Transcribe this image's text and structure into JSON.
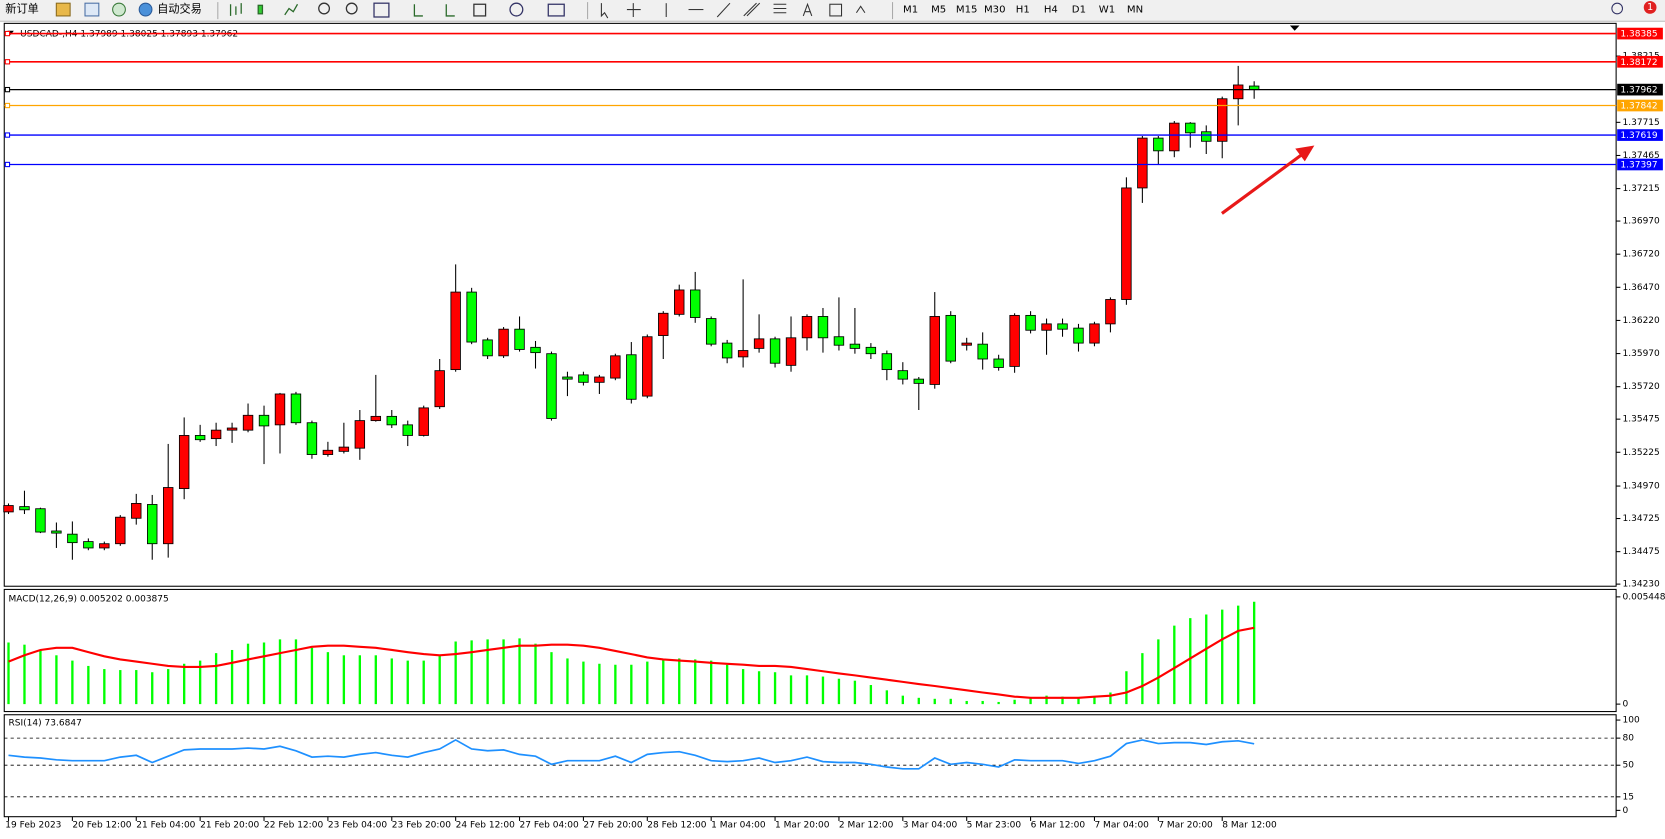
{
  "toolbar": {
    "new_order": "新订单",
    "auto_trading": "自动交易",
    "timeframes": [
      "M1",
      "M5",
      "M15",
      "M30",
      "H1",
      "H4",
      "D1",
      "W1",
      "MN"
    ],
    "notifications": 1
  },
  "chart_data": [
    {
      "type": "candlestick",
      "title": "USDCAD-,H4  1.37989 1.38025 1.37893 1.37962",
      "categories": [
        "19 Feb 2023",
        null,
        null,
        null,
        "20 Feb 12:00",
        null,
        null,
        null,
        "21 Feb 04:00",
        null,
        null,
        null,
        "21 Feb 20:00",
        null,
        null,
        null,
        "22 Feb 12:00",
        null,
        null,
        null,
        "23 Feb 04:00",
        null,
        null,
        null,
        "23 Feb 20:00",
        null,
        null,
        null,
        "24 Feb 12:00",
        null,
        null,
        null,
        "27 Feb 04:00",
        null,
        null,
        null,
        "27 Feb 20:00",
        null,
        null,
        null,
        "28 Feb 12:00",
        null,
        null,
        null,
        "1 Mar 04:00",
        null,
        null,
        null,
        "1 Mar 20:00",
        null,
        null,
        null,
        "2 Mar 12:00",
        null,
        null,
        null,
        "3 Mar 04:00",
        null,
        null,
        null,
        "5 Mar 23:00",
        null,
        null,
        null,
        "6 Mar 12:00",
        null,
        null,
        null,
        "7 Mar 04:00",
        null,
        null,
        null,
        "7 Mar 20:00",
        null,
        null,
        null,
        "8 Mar 12:00",
        null,
        null
      ],
      "open": [
        1.34775,
        1.34815,
        1.34799,
        1.34631,
        1.34607,
        1.34551,
        1.34503,
        1.34535,
        1.34727,
        1.34831,
        1.34535,
        1.34951,
        1.35352,
        1.35328,
        1.35392,
        1.35392,
        1.35504,
        1.35432,
        1.35665,
        1.35448,
        1.35208,
        1.35232,
        1.35256,
        1.35464,
        1.35496,
        1.35432,
        1.35352,
        1.35569,
        1.35849,
        1.36434,
        1.36073,
        1.35953,
        1.36154,
        1.36017,
        1.35969,
        1.35793,
        1.35809,
        1.35753,
        1.35785,
        1.35961,
        1.35649,
        1.36106,
        1.36266,
        1.3645,
        1.36234,
        1.36049,
        1.35945,
        1.36009,
        1.36081,
        1.35881,
        1.36089,
        1.3625,
        1.36097,
        1.36041,
        1.36017,
        1.35969,
        1.35841,
        1.35777,
        1.35737,
        1.36258,
        1.36033,
        1.36041,
        1.35929,
        1.35873,
        1.36258,
        1.36146,
        1.36194,
        1.36162,
        1.36049,
        1.36194,
        1.36378,
        1.3722,
        1.37596,
        1.375,
        1.37709,
        1.37644,
        1.37572,
        1.37893,
        1.37989
      ],
      "high": [
        1.34839,
        1.34935,
        1.34807,
        1.34695,
        1.34703,
        1.34575,
        1.34551,
        1.34751,
        1.34911,
        1.34903,
        1.35288,
        1.35488,
        1.35432,
        1.35448,
        1.35448,
        1.35593,
        1.35577,
        1.35673,
        1.35681,
        1.35464,
        1.35304,
        1.35448,
        1.35544,
        1.35809,
        1.35544,
        1.35464,
        1.35577,
        1.35929,
        1.36643,
        1.36466,
        1.36089,
        1.3617,
        1.3625,
        1.36065,
        1.35985,
        1.35833,
        1.35833,
        1.35809,
        1.35969,
        1.36057,
        1.36114,
        1.3629,
        1.3649,
        1.36586,
        1.3625,
        1.36073,
        1.3653,
        1.36266,
        1.36097,
        1.3625,
        1.36266,
        1.36314,
        1.36394,
        1.36314,
        1.36049,
        1.35993,
        1.35905,
        1.35793,
        1.36434,
        1.3629,
        1.36089,
        1.3613,
        1.35961,
        1.36274,
        1.3629,
        1.36234,
        1.36234,
        1.36194,
        1.3621,
        1.36394,
        1.373,
        1.37612,
        1.37612,
        1.37725,
        1.37717,
        1.37692,
        1.37909,
        1.38141,
        1.38025
      ],
      "low": [
        1.34759,
        1.34759,
        1.34615,
        1.34503,
        1.34414,
        1.34486,
        1.34486,
        1.34519,
        1.34679,
        1.34414,
        1.3443,
        1.34871,
        1.35304,
        1.35272,
        1.35296,
        1.35376,
        1.35136,
        1.35216,
        1.35432,
        1.35176,
        1.35192,
        1.35216,
        1.35168,
        1.35456,
        1.35408,
        1.35272,
        1.35344,
        1.35552,
        1.35833,
        1.36041,
        1.35929,
        1.35937,
        1.35985,
        1.35857,
        1.35464,
        1.35649,
        1.35729,
        1.35665,
        1.35769,
        1.35593,
        1.35633,
        1.35929,
        1.3625,
        1.36202,
        1.36025,
        1.35897,
        1.35865,
        1.35977,
        1.35865,
        1.35833,
        1.35993,
        1.35977,
        1.35993,
        1.35969,
        1.35929,
        1.35769,
        1.35737,
        1.35544,
        1.35705,
        1.35897,
        1.35993,
        1.35849,
        1.35841,
        1.35825,
        1.36122,
        1.35961,
        1.36097,
        1.35985,
        1.36025,
        1.3613,
        1.36338,
        1.37107,
        1.37396,
        1.37452,
        1.37524,
        1.37476,
        1.37444,
        1.37692,
        1.37893
      ],
      "close": [
        1.34823,
        1.34791,
        1.34623,
        1.34615,
        1.34543,
        1.34503,
        1.34535,
        1.34735,
        1.34839,
        1.34535,
        1.34959,
        1.35352,
        1.3532,
        1.35392,
        1.35408,
        1.35504,
        1.35424,
        1.35665,
        1.35448,
        1.35208,
        1.3524,
        1.35264,
        1.35464,
        1.35496,
        1.35432,
        1.35352,
        1.3556,
        1.35841,
        1.36434,
        1.36057,
        1.35953,
        1.36154,
        1.36001,
        1.35977,
        1.3548,
        1.35777,
        1.35753,
        1.35793,
        1.35953,
        1.35625,
        1.36097,
        1.36274,
        1.3645,
        1.36242,
        1.36041,
        1.35937,
        1.35993,
        1.36081,
        1.35897,
        1.36089,
        1.3625,
        1.36089,
        1.36033,
        1.36009,
        1.35969,
        1.35849,
        1.35777,
        1.35745,
        1.3625,
        1.35913,
        1.36049,
        1.35929,
        1.35865,
        1.36258,
        1.36146,
        1.36194,
        1.36154,
        1.36049,
        1.36194,
        1.36378,
        1.3722,
        1.37596,
        1.375,
        1.37709,
        1.37636,
        1.37572,
        1.37893,
        1.37997,
        1.37962
      ],
      "up_color": "#ff0000",
      "down_color": "#00ff00",
      "ylim": [
        1.34214,
        1.38462
      ],
      "yticks": [
        {
          "value": 1.3423,
          "label": "1.34230"
        },
        1.34475,
        1.34725,
        {
          "value": 1.3497,
          "label": "1.34970"
        },
        1.35225,
        1.35475,
        {
          "value": 1.3572,
          "label": "1.35720"
        },
        {
          "value": 1.3597,
          "label": "1.35970"
        },
        {
          "value": 1.3622,
          "label": "1.36220"
        },
        {
          "value": 1.3647,
          "label": "1.36470"
        },
        {
          "value": 1.3672,
          "label": "1.36720"
        },
        {
          "value": 1.3697,
          "label": "1.36970"
        },
        1.37215,
        1.37465,
        1.37715,
        1.38215
      ],
      "hlines": [
        {
          "value": 1.38385,
          "color": "#ff0000"
        },
        {
          "value": 1.38172,
          "color": "#ff0000"
        },
        {
          "value": 1.37962,
          "color": "#000000"
        },
        {
          "value": 1.37842,
          "color": "#ffa500"
        },
        {
          "value": 1.37619,
          "color": "#0000ff"
        },
        {
          "value": 1.37397,
          "color": "#0000ff"
        }
      ],
      "grid": false
    },
    {
      "type": "macd",
      "title": "MACD(12,26,9) 0.005202 0.003875",
      "series": [
        {
          "style": "bar",
          "color": "#00ff00",
          "values": [
            0.00313,
            0.00302,
            0.00275,
            0.00248,
            0.00221,
            0.00194,
            0.00178,
            0.00173,
            0.00173,
            0.00162,
            0.00178,
            0.00205,
            0.00221,
            0.00259,
            0.00275,
            0.00307,
            0.00313,
            0.00329,
            0.00329,
            0.00286,
            0.00264,
            0.00248,
            0.00248,
            0.00248,
            0.00232,
            0.00221,
            0.00221,
            0.00248,
            0.00318,
            0.00324,
            0.00329,
            0.00329,
            0.00334,
            0.00307,
            0.00264,
            0.00232,
            0.00216,
            0.00205,
            0.002,
            0.002,
            0.00216,
            0.00227,
            0.00232,
            0.00227,
            0.00221,
            0.002,
            0.00178,
            0.00167,
            0.00162,
            0.00146,
            0.00146,
            0.0014,
            0.00129,
            0.00119,
            0.00097,
            0.0007,
            0.00043,
            0.00032,
            0.00027,
            0.00027,
            0.00016,
            0.00016,
            0.00011,
            0.00022,
            0.00032,
            0.00043,
            0.00038,
            0.00032,
            0.00038,
            0.00059,
            0.00167,
            0.00259,
            0.00329,
            0.00399,
            0.00437,
            0.00455,
            0.0048,
            0.005,
            0.005202
          ]
        },
        {
          "style": "line",
          "color": "#ff0000",
          "values": [
            0.00216,
            0.00248,
            0.00275,
            0.00286,
            0.00286,
            0.00264,
            0.00243,
            0.00227,
            0.00216,
            0.00205,
            0.00194,
            0.00189,
            0.00189,
            0.00194,
            0.0021,
            0.00227,
            0.00243,
            0.00259,
            0.00275,
            0.00291,
            0.00297,
            0.00297,
            0.00291,
            0.00286,
            0.00275,
            0.00264,
            0.00254,
            0.00248,
            0.00254,
            0.00264,
            0.00275,
            0.00286,
            0.00297,
            0.00297,
            0.00302,
            0.00302,
            0.00297,
            0.00286,
            0.0027,
            0.00254,
            0.00237,
            0.00227,
            0.00221,
            0.00216,
            0.0021,
            0.00205,
            0.002,
            0.00194,
            0.00194,
            0.00189,
            0.00178,
            0.00167,
            0.00156,
            0.00146,
            0.00135,
            0.00124,
            0.00113,
            0.00102,
            0.00092,
            0.00081,
            0.0007,
            0.00059,
            0.00049,
            0.00038,
            0.00032,
            0.00032,
            0.00032,
            0.00032,
            0.00038,
            0.00043,
            0.00059,
            0.00092,
            0.00135,
            0.00183,
            0.00232,
            0.00281,
            0.00329,
            0.00372,
            0.003875
          ]
        }
      ],
      "ylim": [
        -0.000324,
        0.005772
      ],
      "yticks": [
        0,
        0.005448
      ]
    },
    {
      "type": "line",
      "title": "RSI(14) 73.6847",
      "series": [
        {
          "color": "#1e90ff",
          "values": [
            61,
            59,
            58,
            56,
            55,
            55,
            55,
            59,
            61,
            53,
            60,
            67,
            68,
            68,
            68,
            69,
            68,
            71,
            66,
            59,
            60,
            59,
            62,
            64,
            61,
            59,
            64,
            68,
            78,
            68,
            66,
            67,
            62,
            60,
            51,
            55,
            55,
            55,
            60,
            53,
            62,
            64,
            65,
            61,
            55,
            54,
            55,
            58,
            53,
            55,
            59,
            54,
            53,
            53,
            51,
            48,
            46,
            46,
            58,
            51,
            53,
            51,
            48,
            56,
            55,
            55,
            55,
            52,
            55,
            60,
            74,
            78,
            74,
            75,
            75,
            73,
            76,
            77,
            73.6847
          ]
        }
      ],
      "ylim": [
        -7,
        105.9
      ],
      "yticks": [
        0,
        15,
        50,
        80,
        100
      ],
      "levels": [
        15,
        50,
        80
      ]
    }
  ]
}
